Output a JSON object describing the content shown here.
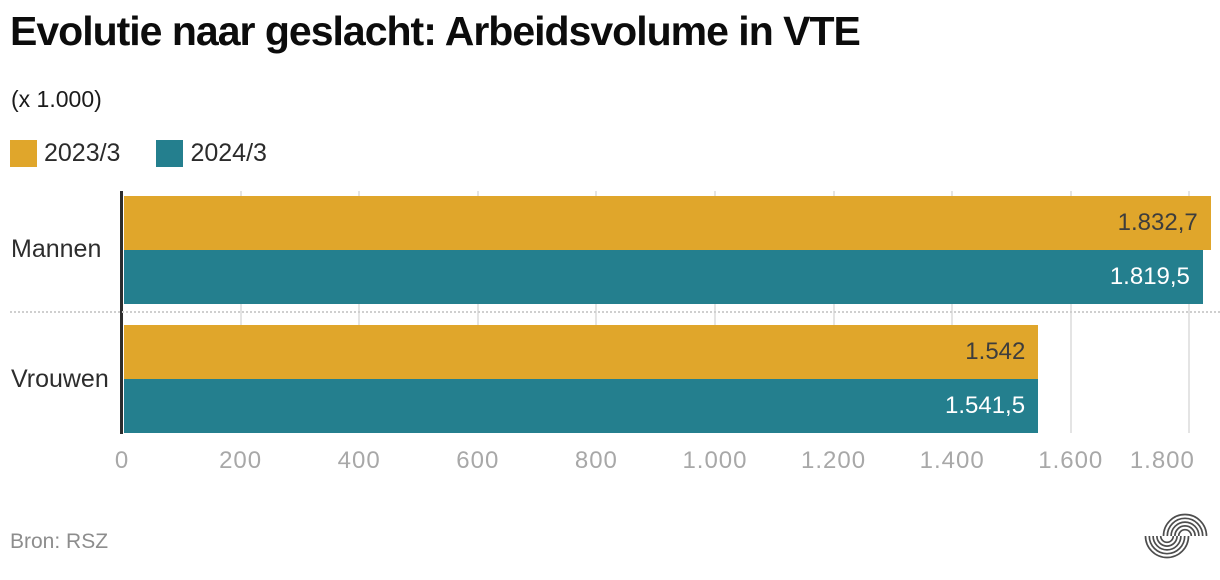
{
  "title": "Evolutie naar geslacht: Arbeidsvolume in VTE",
  "subtitle": "(x 1.000)",
  "source": "Bron: RSZ",
  "logo_name": "rsz-arcs-logo",
  "colors": {
    "series_2023": "#E0A62B",
    "series_2024": "#247F8E",
    "title_text": "#0c0c0c",
    "tick_text": "#a8a8a8",
    "source_text": "#8d8d8d",
    "gridline": "#e4e4e4",
    "axis_line": "#2d2d2d",
    "separator_dots": "#cfcfcf"
  },
  "chart_data": {
    "type": "bar",
    "orientation": "horizontal",
    "title": "Evolutie naar geslacht: Arbeidsvolume in VTE",
    "subtitle_unit": "(x 1.000)",
    "categories": [
      "Mannen",
      "Vrouwen"
    ],
    "series": [
      {
        "name": "2023/3",
        "color": "#E0A62B",
        "values": [
          1832.7,
          1542
        ],
        "labels": [
          "1.832,7",
          "1.542"
        ],
        "label_color": "#3d3d3d"
      },
      {
        "name": "2024/3",
        "color": "#247F8E",
        "values": [
          1819.5,
          1541.5
        ],
        "labels": [
          "1.819,5",
          "1.541,5"
        ],
        "label_color": "#ffffff"
      }
    ],
    "xlabel": "",
    "ylabel": "",
    "xmax": 1850,
    "xticks": [
      {
        "v": 0,
        "label": "0"
      },
      {
        "v": 200,
        "label": "200"
      },
      {
        "v": 400,
        "label": "400"
      },
      {
        "v": 600,
        "label": "600"
      },
      {
        "v": 800,
        "label": "800"
      },
      {
        "v": 1000,
        "label": "1.000"
      },
      {
        "v": 1200,
        "label": "1.200"
      },
      {
        "v": 1400,
        "label": "1.400"
      },
      {
        "v": 1600,
        "label": "1.600"
      },
      {
        "v": 1800,
        "label": "1.800"
      }
    ],
    "grid": "vertical",
    "legend_position": "top-left"
  }
}
